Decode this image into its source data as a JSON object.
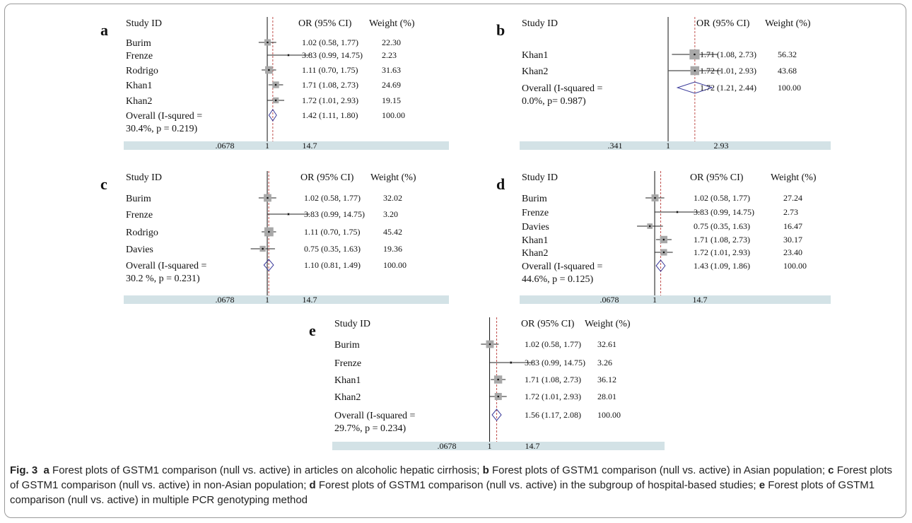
{
  "figure_label": "Fig. 3",
  "caption_parts": [
    {
      "letter": "a",
      "text": "Forest plots of GSTM1 comparison (null vs. active) in articles on alcoholic hepatic cirrhosis;"
    },
    {
      "letter": "b",
      "text": "Forest plots of GSTM1 comparison (null vs. active) in Asian population;"
    },
    {
      "letter": "c",
      "text": "Forest plots of GSTM1 comparison (null vs. active) in non-Asian population;"
    },
    {
      "letter": "d",
      "text": "Forest plots of GSTM1 comparison (null vs. active) in the subgroup of hospital-based studies;"
    },
    {
      "letter": "e",
      "text": "Forest plots of GSTM1 comparison (null vs. active) in multiple PCR genotyping method"
    }
  ],
  "chart_data": [
    {
      "type": "forest",
      "panel": "a",
      "headers": {
        "study": "Study ID",
        "or": "OR (95% CI)",
        "weight": "Weight (%)"
      },
      "studies": [
        {
          "name": "Burim",
          "or": 1.02,
          "ci": [
            0.58,
            1.77
          ],
          "label": "1.02 (0.58, 1.77)",
          "weight": "22.30"
        },
        {
          "name": "Frenze",
          "or": 3.83,
          "ci": [
            0.99,
            14.75
          ],
          "label": "3.83 (0.99, 14.75)",
          "weight": "2.23"
        },
        {
          "name": "Rodrigo",
          "or": 1.11,
          "ci": [
            0.7,
            1.75
          ],
          "label": "1.11 (0.70, 1.75)",
          "weight": "31.63"
        },
        {
          "name": "Khan1",
          "or": 1.71,
          "ci": [
            1.08,
            2.73
          ],
          "label": "1.71 (1.08, 2.73)",
          "weight": "24.69"
        },
        {
          "name": "Khan2",
          "or": 1.72,
          "ci": [
            1.01,
            2.93
          ],
          "label": "1.72 (1.01, 2.93)",
          "weight": "19.15"
        }
      ],
      "overall": {
        "line1": "Overall (I-squred =",
        "line2": "30.4%, p = 0.219)",
        "or": 1.42,
        "ci": [
          1.11,
          1.8
        ],
        "label": "1.42 (1.11, 1.80)",
        "weight": "100.00"
      },
      "ticks": [
        ".0678",
        "1",
        "14.7"
      ],
      "xlim": [
        0.0678,
        14.7
      ]
    },
    {
      "type": "forest",
      "panel": "b",
      "headers": {
        "study": "Study ID",
        "or": "OR (95% CI)",
        "weight": "Weight (%)"
      },
      "studies": [
        {
          "name": "Khan1",
          "or": 1.71,
          "ci": [
            1.08,
            2.73
          ],
          "label": "1.71 (1.08, 2.73)",
          "weight": "56.32"
        },
        {
          "name": "Khan2",
          "or": 1.72,
          "ci": [
            1.01,
            2.93
          ],
          "label": "1.72 (1.01, 2.93)",
          "weight": "43.68"
        }
      ],
      "overall": {
        "line1": "Overall (I-squared =",
        "line2": "0.0%, p= 0.987)",
        "or": 1.72,
        "ci": [
          1.21,
          2.44
        ],
        "label": "1.72 (1.21, 2.44)",
        "weight": "100.00"
      },
      "ticks": [
        ".341",
        "1",
        "2.93"
      ],
      "xlim": [
        0.341,
        2.93
      ]
    },
    {
      "type": "forest",
      "panel": "c",
      "headers": {
        "study": "Study ID",
        "or": "OR (95% CI)",
        "weight": "Weight (%)"
      },
      "studies": [
        {
          "name": "Burim",
          "or": 1.02,
          "ci": [
            0.58,
            1.77
          ],
          "label": "1.02 (0.58, 1.77)",
          "weight": "32.02"
        },
        {
          "name": "Frenze",
          "or": 3.83,
          "ci": [
            0.99,
            14.75
          ],
          "label": "3.83 (0.99, 14.75)",
          "weight": "3.20"
        },
        {
          "name": "Rodrigo",
          "or": 1.11,
          "ci": [
            0.7,
            1.75
          ],
          "label": "1.11 (0.70, 1.75)",
          "weight": "45.42"
        },
        {
          "name": "Davies",
          "or": 0.75,
          "ci": [
            0.35,
            1.63
          ],
          "label": "0.75 (0.35, 1.63)",
          "weight": "19.36"
        }
      ],
      "overall": {
        "line1": "Overall (I-squared =",
        "line2": "30.2 %, p = 0.231)",
        "or": 1.1,
        "ci": [
          0.81,
          1.49
        ],
        "label": "1.10 (0.81, 1.49)",
        "weight": "100.00"
      },
      "ticks": [
        ".0678",
        "1",
        "14.7"
      ],
      "xlim": [
        0.0678,
        14.7
      ]
    },
    {
      "type": "forest",
      "panel": "d",
      "headers": {
        "study": "Study ID",
        "or": "OR (95% CI)",
        "weight": "Weight (%)"
      },
      "studies": [
        {
          "name": "Burim",
          "or": 1.02,
          "ci": [
            0.58,
            1.77
          ],
          "label": "1.02 (0.58, 1.77)",
          "weight": "27.24"
        },
        {
          "name": "Frenze",
          "or": 3.83,
          "ci": [
            0.99,
            14.75
          ],
          "label": "3.83 (0.99, 14.75)",
          "weight": "2.73"
        },
        {
          "name": "Davies",
          "or": 0.75,
          "ci": [
            0.35,
            1.63
          ],
          "label": "0.75 (0.35, 1.63)",
          "weight": "16.47"
        },
        {
          "name": "Khan1",
          "or": 1.71,
          "ci": [
            1.08,
            2.73
          ],
          "label": "1.71 (1.08, 2.73)",
          "weight": "30.17"
        },
        {
          "name": "Khan2",
          "or": 1.72,
          "ci": [
            1.01,
            2.93
          ],
          "label": "1.72 (1.01, 2.93)",
          "weight": "23.40"
        }
      ],
      "overall": {
        "line1": "Overall (I-squared =",
        "line2": "44.6%, p = 0.125)",
        "or": 1.43,
        "ci": [
          1.09,
          1.86
        ],
        "label": "1.43 (1.09, 1.86)",
        "weight": "100.00"
      },
      "ticks": [
        ".0678",
        "1",
        "14.7"
      ],
      "xlim": [
        0.0678,
        14.7
      ]
    },
    {
      "type": "forest",
      "panel": "e",
      "headers": {
        "study": "Study ID",
        "or": "OR (95% CI)",
        "weight": "Weight (%)"
      },
      "studies": [
        {
          "name": "Burim",
          "or": 1.02,
          "ci": [
            0.58,
            1.77
          ],
          "label": "1.02 (0.58, 1.77)",
          "weight": "32.61"
        },
        {
          "name": "Frenze",
          "or": 3.83,
          "ci": [
            0.99,
            14.75
          ],
          "label": "3.83 (0.99, 14.75)",
          "weight": "3.26"
        },
        {
          "name": "Khan1",
          "or": 1.71,
          "ci": [
            1.08,
            2.73
          ],
          "label": "1.71 (1.08, 2.73)",
          "weight": "36.12"
        },
        {
          "name": "Khan2",
          "or": 1.72,
          "ci": [
            1.01,
            2.93
          ],
          "label": "1.72 (1.01, 2.93)",
          "weight": "28.01"
        }
      ],
      "overall": {
        "line1": "Overall (I-squared =",
        "line2": "29.7%, p = 0.234)",
        "or": 1.56,
        "ci": [
          1.17,
          2.08
        ],
        "label": "1.56 (1.17, 2.08)",
        "weight": "100.00"
      },
      "ticks": [
        ".0678",
        "1",
        "14.7"
      ],
      "xlim": [
        0.0678,
        14.7
      ]
    }
  ],
  "colors": {
    "box": "#a8a8a8",
    "ci_line": "#222222",
    "diamond": "#3a3a9a",
    "pooled_line": "#c0504d",
    "axis_band": "#d3e2e6"
  }
}
